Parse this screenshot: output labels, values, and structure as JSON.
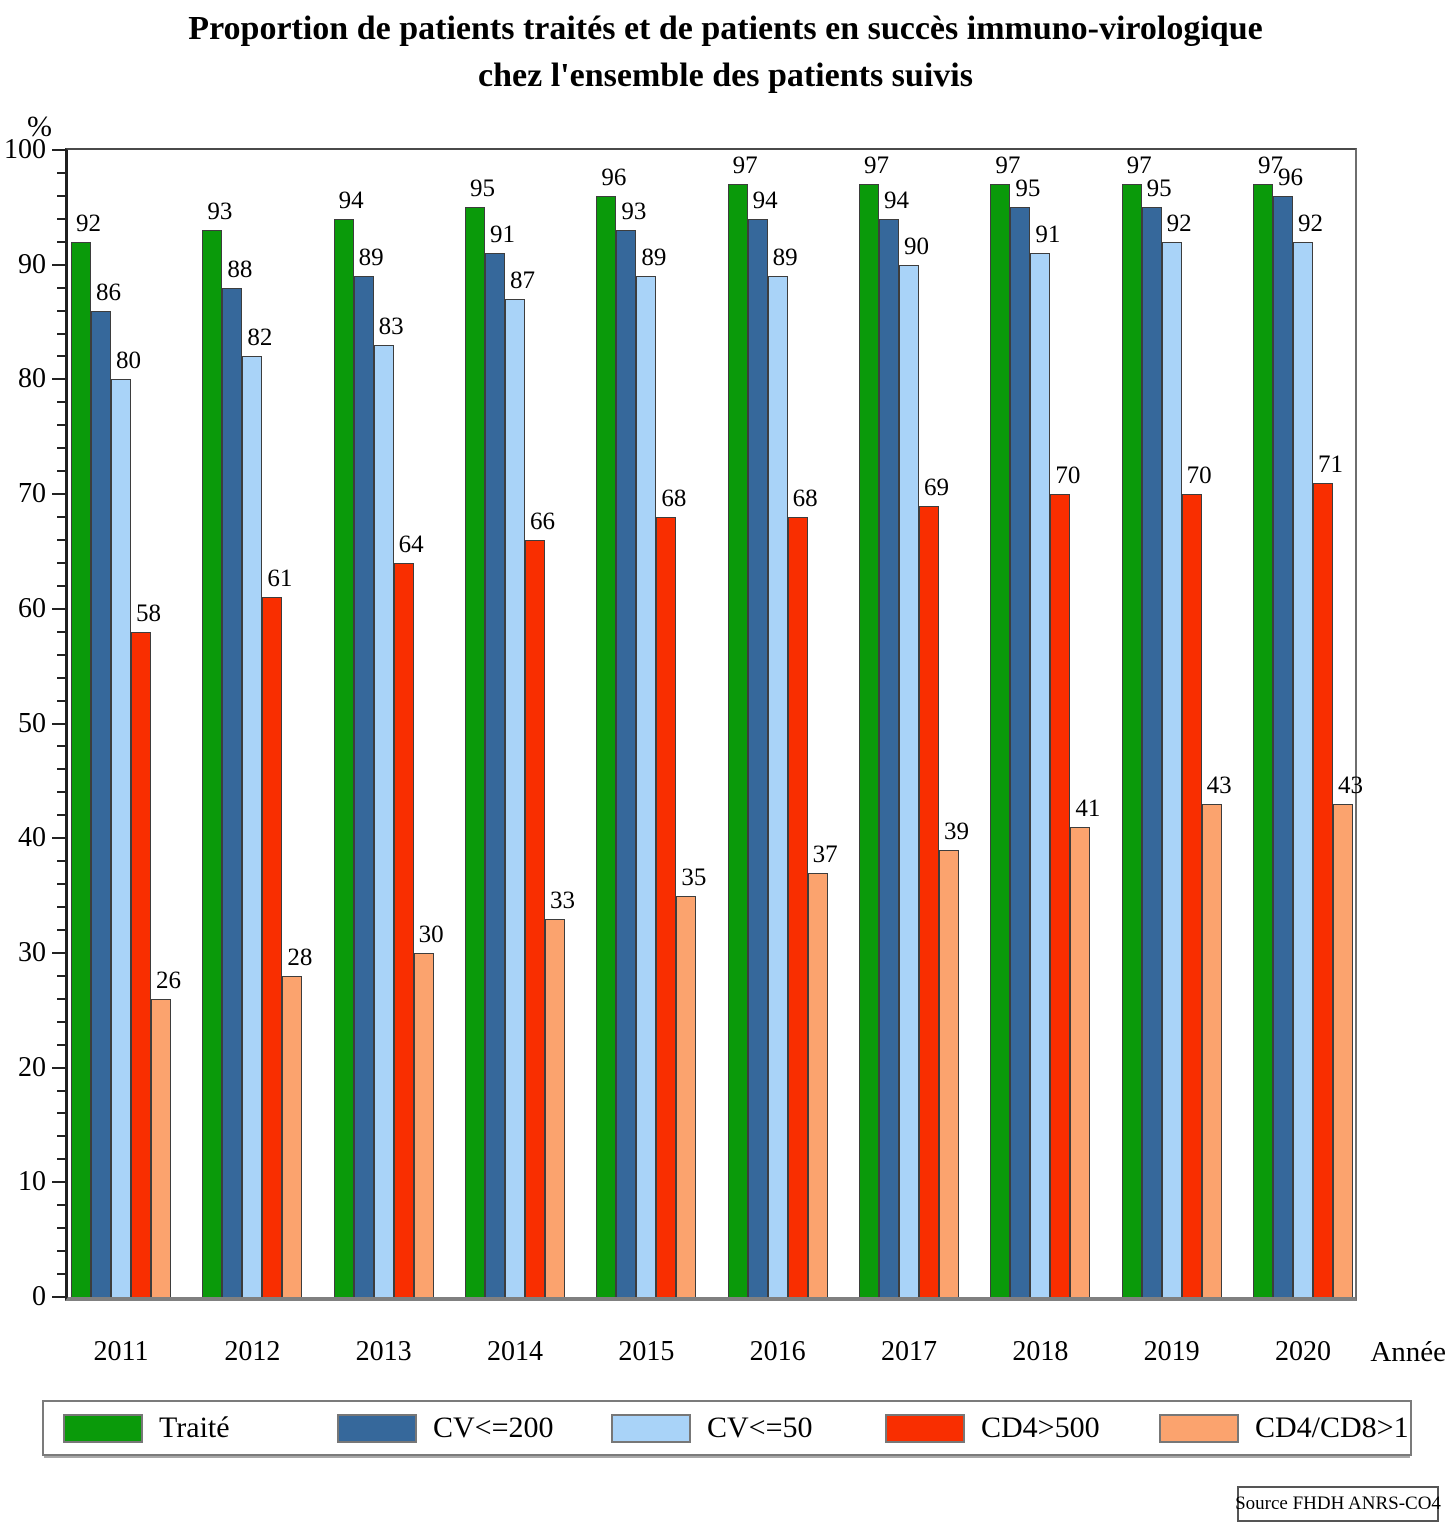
{
  "title": {
    "line1": "Proportion de patients traités et de patients en succès immuno-virologique",
    "line2": "chez l'ensemble des patients suivis"
  },
  "y_axis": {
    "unit_label": "%",
    "min": 0,
    "max": 100,
    "major_step": 10,
    "minor_step": 2
  },
  "x_axis": {
    "label": "Année"
  },
  "source": "Source FHDH ANRS-CO4",
  "colors": {
    "traite": "#0a9a0a",
    "cv200": "#36689b",
    "cv50": "#a9d3f8",
    "cd4500": "#f92e00",
    "cd4cd8": "#fba36e",
    "bar_border": "#3d3d3d"
  },
  "chart_data": {
    "type": "bar",
    "title": "Proportion de patients traités et de patients en succès immuno-virologique chez l'ensemble des patients suivis",
    "xlabel": "Année",
    "ylabel": "%",
    "ylim": [
      0,
      100
    ],
    "grid": false,
    "legend_position": "bottom",
    "categories": [
      "2011",
      "2012",
      "2013",
      "2014",
      "2015",
      "2016",
      "2017",
      "2018",
      "2019",
      "2020"
    ],
    "series": [
      {
        "name": "Traité",
        "color": "#0a9a0a",
        "values": [
          92,
          93,
          94,
          95,
          96,
          97,
          97,
          97,
          97,
          97
        ]
      },
      {
        "name": "CV<=200",
        "color": "#36689b",
        "values": [
          86,
          88,
          89,
          91,
          93,
          94,
          94,
          95,
          95,
          96
        ]
      },
      {
        "name": "CV<=50",
        "color": "#a9d3f8",
        "values": [
          80,
          82,
          83,
          87,
          89,
          89,
          90,
          91,
          92,
          92
        ]
      },
      {
        "name": "CD4>500",
        "color": "#f92e00",
        "values": [
          58,
          61,
          64,
          66,
          68,
          68,
          69,
          70,
          70,
          71
        ]
      },
      {
        "name": "CD4/CD8>1",
        "color": "#fba36e",
        "values": [
          26,
          28,
          30,
          33,
          35,
          37,
          39,
          41,
          43,
          43
        ]
      }
    ]
  },
  "legend": {
    "items": [
      {
        "label": "Traité",
        "color": "#0a9a0a"
      },
      {
        "label": "CV<=200",
        "color": "#36689b"
      },
      {
        "label": "CV<=50",
        "color": "#a9d3f8"
      },
      {
        "label": "CD4>500",
        "color": "#f92e00"
      },
      {
        "label": "CD4/CD8>1",
        "color": "#fba36e"
      }
    ]
  }
}
